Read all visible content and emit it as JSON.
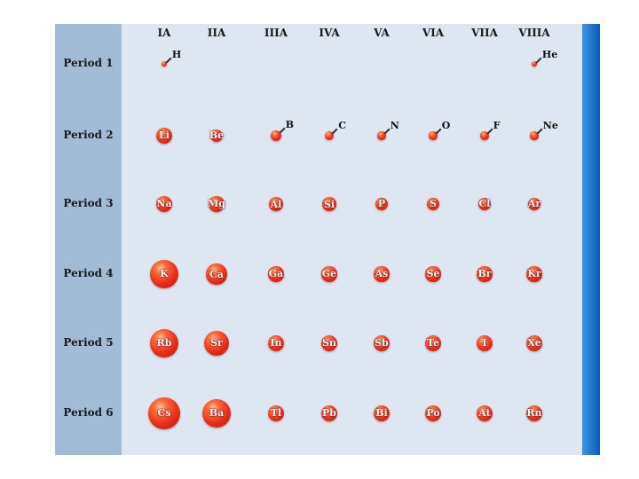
{
  "chart_data": {
    "type": "diagram",
    "groups": [
      "IA",
      "IIA",
      "IIIA",
      "IVA",
      "VA",
      "VIA",
      "VIIA",
      "VIIIA"
    ],
    "periods": [
      "Period 1",
      "Period 2",
      "Period 3",
      "Period 4",
      "Period 5",
      "Period 6"
    ],
    "elements": [
      {
        "symbol": "H",
        "period": 1,
        "group": 1,
        "size": 2
      },
      {
        "symbol": "He",
        "period": 1,
        "group": 8,
        "size": 2
      },
      {
        "symbol": "Li",
        "period": 2,
        "group": 1,
        "size": 6
      },
      {
        "symbol": "Be",
        "period": 2,
        "group": 2,
        "size": 4.5
      },
      {
        "symbol": "B",
        "period": 2,
        "group": 3,
        "size": 4
      },
      {
        "symbol": "C",
        "period": 2,
        "group": 4,
        "size": 3.5
      },
      {
        "symbol": "N",
        "period": 2,
        "group": 5,
        "size": 3
      },
      {
        "symbol": "O",
        "period": 2,
        "group": 6,
        "size": 3
      },
      {
        "symbol": "F",
        "period": 2,
        "group": 7,
        "size": 3
      },
      {
        "symbol": "Ne",
        "period": 2,
        "group": 8,
        "size": 3
      },
      {
        "symbol": "Na",
        "period": 3,
        "group": 1,
        "size": 6
      },
      {
        "symbol": "Mg",
        "period": 3,
        "group": 2,
        "size": 5.5
      },
      {
        "symbol": "Al",
        "period": 3,
        "group": 3,
        "size": 5
      },
      {
        "symbol": "Si",
        "period": 3,
        "group": 4,
        "size": 5
      },
      {
        "symbol": "P",
        "period": 3,
        "group": 5,
        "size": 4.7
      },
      {
        "symbol": "S",
        "period": 3,
        "group": 6,
        "size": 4.7
      },
      {
        "symbol": "Cl",
        "period": 3,
        "group": 7,
        "size": 4.7
      },
      {
        "symbol": "Ar",
        "period": 3,
        "group": 8,
        "size": 4.7
      },
      {
        "symbol": "K",
        "period": 4,
        "group": 1,
        "size": 10.5
      },
      {
        "symbol": "Ca",
        "period": 4,
        "group": 2,
        "size": 7.5
      },
      {
        "symbol": "Ga",
        "period": 4,
        "group": 3,
        "size": 5.5
      },
      {
        "symbol": "Ge",
        "period": 4,
        "group": 4,
        "size": 5.5
      },
      {
        "symbol": "As",
        "period": 4,
        "group": 5,
        "size": 5.5
      },
      {
        "symbol": "Se",
        "period": 4,
        "group": 6,
        "size": 5.5
      },
      {
        "symbol": "Br",
        "period": 4,
        "group": 7,
        "size": 5.5
      },
      {
        "symbol": "Kr",
        "period": 4,
        "group": 8,
        "size": 5.5
      },
      {
        "symbol": "Rb",
        "period": 5,
        "group": 1,
        "size": 10.5
      },
      {
        "symbol": "Sr",
        "period": 5,
        "group": 2,
        "size": 9
      },
      {
        "symbol": "In",
        "period": 5,
        "group": 3,
        "size": 6
      },
      {
        "symbol": "Sn",
        "period": 5,
        "group": 4,
        "size": 6
      },
      {
        "symbol": "Sb",
        "period": 5,
        "group": 5,
        "size": 6
      },
      {
        "symbol": "Te",
        "period": 5,
        "group": 6,
        "size": 6
      },
      {
        "symbol": "I",
        "period": 5,
        "group": 7,
        "size": 6
      },
      {
        "symbol": "Xe",
        "period": 5,
        "group": 8,
        "size": 6
      },
      {
        "symbol": "Cs",
        "period": 6,
        "group": 1,
        "size": 11.5
      },
      {
        "symbol": "Ba",
        "period": 6,
        "group": 2,
        "size": 10.5
      },
      {
        "symbol": "Tl",
        "period": 6,
        "group": 3,
        "size": 6
      },
      {
        "symbol": "Pb",
        "period": 6,
        "group": 4,
        "size": 6
      },
      {
        "symbol": "Bi",
        "period": 6,
        "group": 5,
        "size": 6
      },
      {
        "symbol": "Po",
        "period": 6,
        "group": 6,
        "size": 6
      },
      {
        "symbol": "At",
        "period": 6,
        "group": 7,
        "size": 6
      },
      {
        "symbol": "Rn",
        "period": 6,
        "group": 8,
        "size": 6
      }
    ]
  },
  "colors": {
    "left_column": "#a2bcd6",
    "main_panel": "#dde6f1",
    "right_edge": "#1e78d0",
    "atom": "#e8321c"
  }
}
